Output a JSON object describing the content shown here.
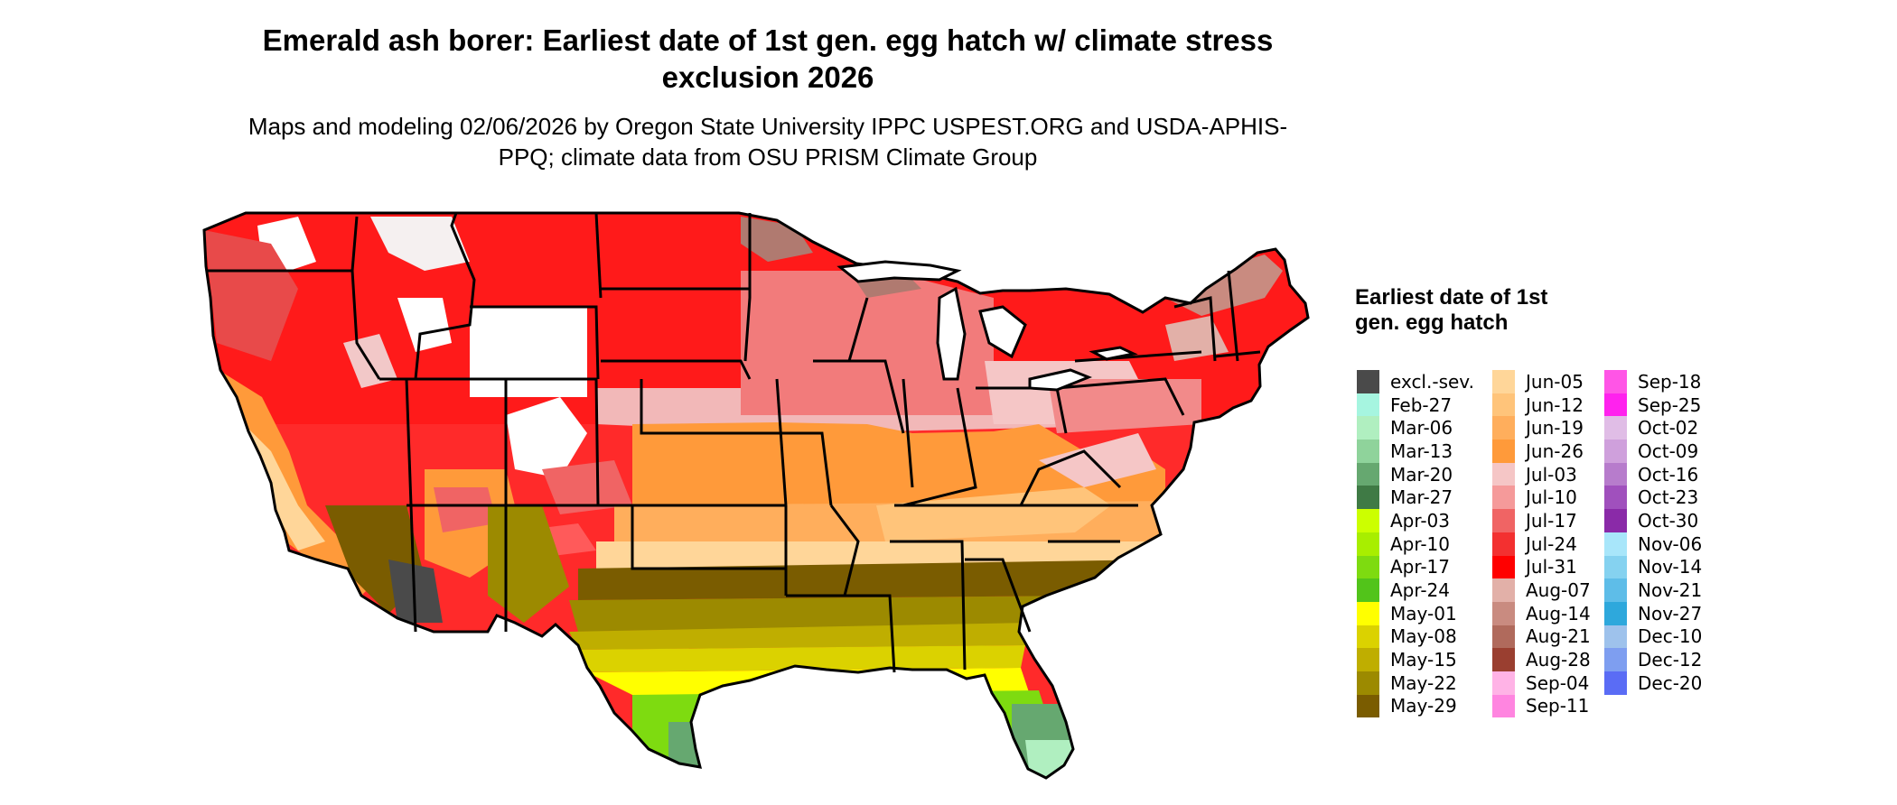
{
  "title": "Emerald ash borer: Earliest date of 1st gen. egg hatch w/ climate stress exclusion 2026",
  "subtitle": "Maps and modeling 02/06/2026 by Oregon State University IPPC USPEST.ORG and USDA-APHIS-PPQ; climate data from OSU PRISM Climate Group",
  "legend": {
    "title": "Earliest date of 1st gen. egg hatch",
    "columns": [
      [
        {
          "label": "excl.-sev.",
          "color": "#4a4a4a"
        },
        {
          "label": "Feb-27",
          "color": "#a6f5e0"
        },
        {
          "label": "Mar-06",
          "color": "#b0efc0"
        },
        {
          "label": "Mar-13",
          "color": "#8fd39b"
        },
        {
          "label": "Mar-20",
          "color": "#66a870"
        },
        {
          "label": "Mar-27",
          "color": "#3f7a45"
        },
        {
          "label": "Apr-03",
          "color": "#ccff00"
        },
        {
          "label": "Apr-10",
          "color": "#a8ee00"
        },
        {
          "label": "Apr-17",
          "color": "#7edb10"
        },
        {
          "label": "Apr-24",
          "color": "#52c41a"
        },
        {
          "label": "May-01",
          "color": "#ffff00"
        },
        {
          "label": "May-08",
          "color": "#dbd200"
        },
        {
          "label": "May-15",
          "color": "#bfae00"
        },
        {
          "label": "May-22",
          "color": "#9c8a00"
        },
        {
          "label": "May-29",
          "color": "#7a5c00"
        }
      ],
      [
        {
          "label": "Jun-05",
          "color": "#ffd699"
        },
        {
          "label": "Jun-12",
          "color": "#ffc47a"
        },
        {
          "label": "Jun-19",
          "color": "#ffae5c"
        },
        {
          "label": "Jun-26",
          "color": "#ff9a3a"
        },
        {
          "label": "Jul-03",
          "color": "#f5c6c6"
        },
        {
          "label": "Jul-10",
          "color": "#f59a9a"
        },
        {
          "label": "Jul-17",
          "color": "#f06464"
        },
        {
          "label": "Jul-24",
          "color": "#f33030"
        },
        {
          "label": "Jul-31",
          "color": "#ff0000"
        },
        {
          "label": "Aug-07",
          "color": "#e2b0a8"
        },
        {
          "label": "Aug-14",
          "color": "#c98b80"
        },
        {
          "label": "Aug-21",
          "color": "#b06a5c"
        },
        {
          "label": "Aug-28",
          "color": "#9a3f30"
        },
        {
          "label": "Sep-04",
          "color": "#ffb3e6"
        },
        {
          "label": "Sep-11",
          "color": "#ff85e0"
        }
      ],
      [
        {
          "label": "Sep-18",
          "color": "#ff55e6"
        },
        {
          "label": "Sep-25",
          "color": "#ff22ee"
        },
        {
          "label": "Oct-02",
          "color": "#e0bde6"
        },
        {
          "label": "Oct-09",
          "color": "#cfa0dc"
        },
        {
          "label": "Oct-16",
          "color": "#b77ccc"
        },
        {
          "label": "Oct-23",
          "color": "#a050bd"
        },
        {
          "label": "Oct-30",
          "color": "#8a2aa8"
        },
        {
          "label": "Nov-06",
          "color": "#a8e6fa"
        },
        {
          "label": "Nov-14",
          "color": "#85d2f0"
        },
        {
          "label": "Nov-21",
          "color": "#5ebde8"
        },
        {
          "label": "Nov-27",
          "color": "#2ea8dc"
        },
        {
          "label": "Dec-10",
          "color": "#9ec2ec"
        },
        {
          "label": "Dec-12",
          "color": "#7e9ef0"
        },
        {
          "label": "Dec-20",
          "color": "#5a6cf5"
        }
      ]
    ]
  }
}
